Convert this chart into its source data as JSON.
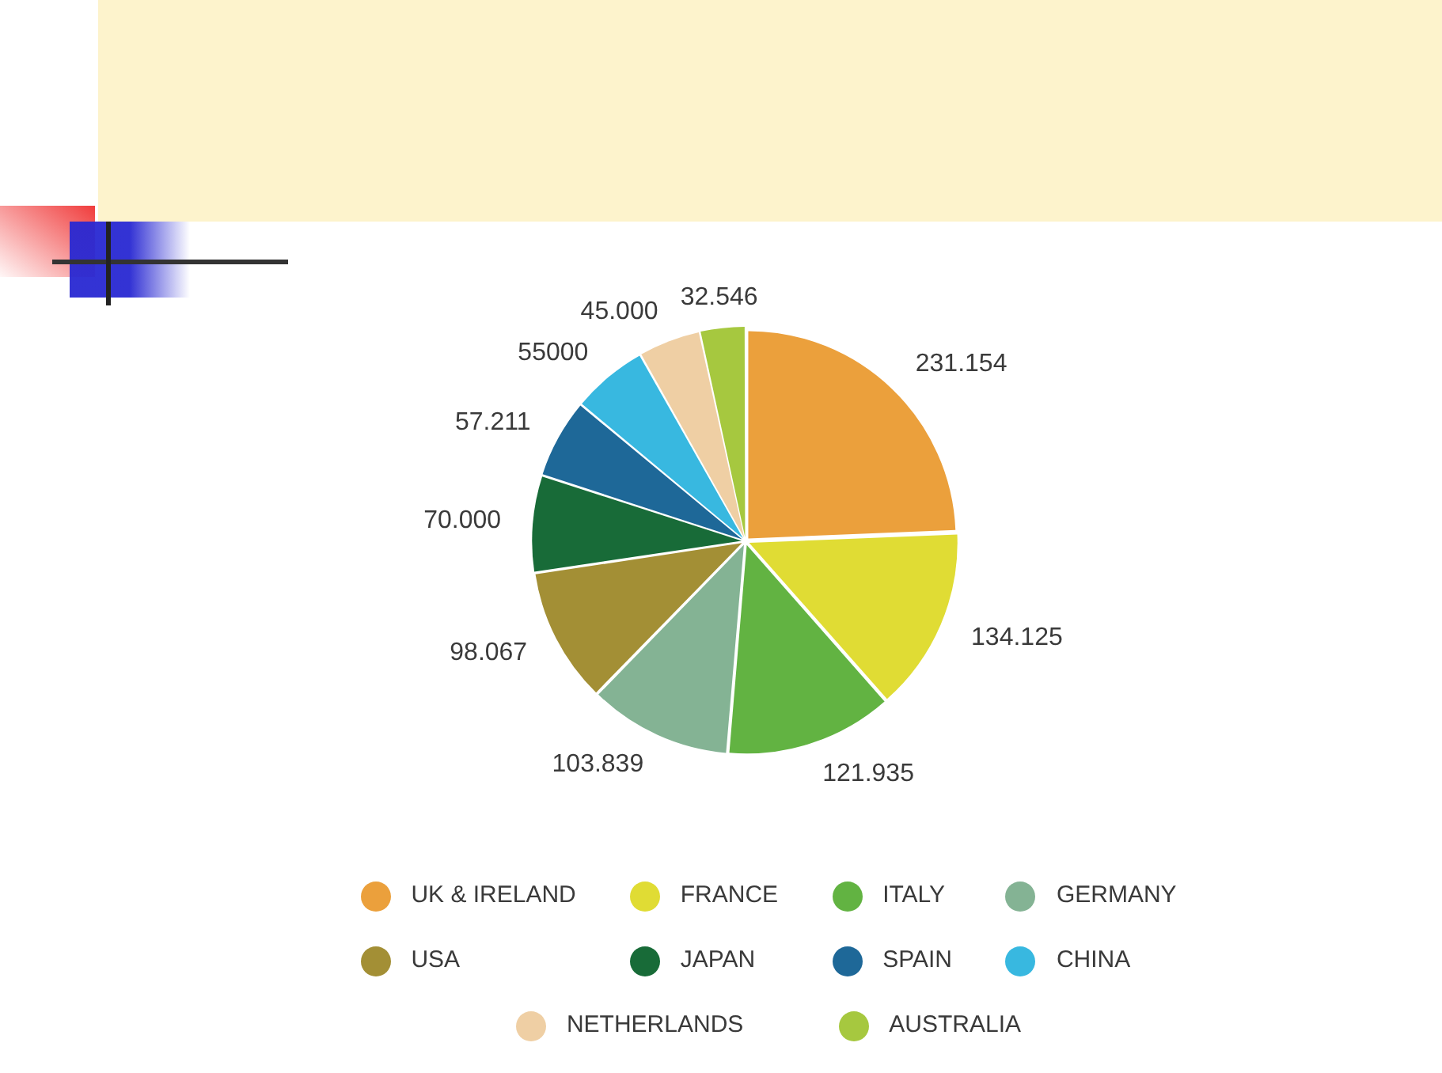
{
  "chart_data": {
    "type": "pie",
    "categories": [
      "UK & IRELAND",
      "FRANCE",
      "ITALY",
      "GERMANY",
      "USA",
      "JAPAN",
      "SPAIN",
      "CHINA",
      "NETHERLANDS",
      "AUSTRALIA"
    ],
    "values": [
      231154,
      134125,
      121935,
      103839,
      98067,
      70000,
      57211,
      55000,
      45000,
      32546
    ],
    "value_labels": [
      "231.154",
      "134.125",
      "121.935",
      "103.839",
      "98.067",
      "70.000",
      "57.211",
      "55000",
      "45.000",
      "32.546"
    ],
    "colors": [
      "#eba03c",
      "#e0dc34",
      "#62b342",
      "#84b394",
      "#a38f35",
      "#186b38",
      "#1e6898",
      "#38b8e0",
      "#efcfa4",
      "#a6c83f"
    ],
    "legend": "bottom"
  }
}
